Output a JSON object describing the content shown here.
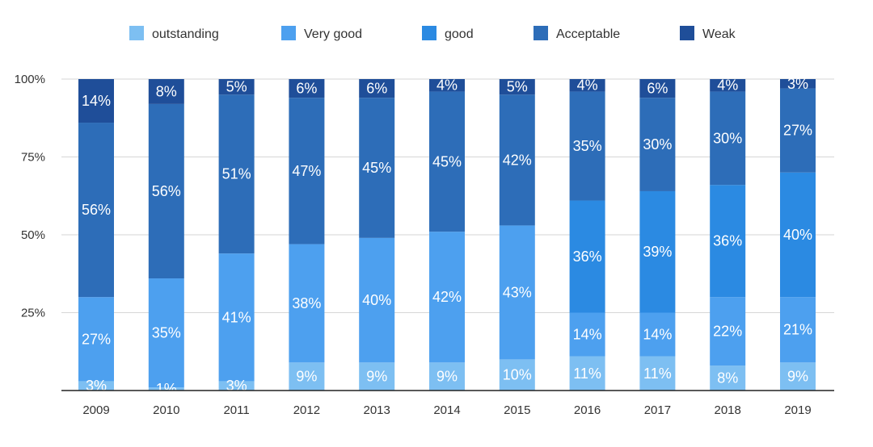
{
  "chart_data": {
    "type": "bar",
    "stacked": true,
    "title": "",
    "xlabel": "",
    "ylabel": "",
    "ylim": [
      0,
      100
    ],
    "yticks": [
      "100%",
      "75%",
      "50%",
      "25%"
    ],
    "ytick_values": [
      100,
      75,
      50,
      25
    ],
    "grid": true,
    "legend_position": "top",
    "categories": [
      "2009",
      "2010",
      "2011",
      "2012",
      "2013",
      "2014",
      "2015",
      "2016",
      "2017",
      "2018",
      "2019"
    ],
    "series": [
      {
        "name": "outstanding",
        "color": "#7dbff2",
        "values": [
          3,
          1,
          3,
          9,
          9,
          9,
          10,
          11,
          11,
          8,
          9
        ],
        "labels": [
          "3%",
          "1%",
          "3%",
          "9%",
          "9%",
          "9%",
          "10%",
          "11%",
          "11%",
          "8%",
          "9%"
        ]
      },
      {
        "name": "Very good",
        "color": "#4da0ef",
        "values": [
          27,
          35,
          41,
          38,
          40,
          42,
          43,
          14,
          14,
          22,
          21
        ],
        "labels": [
          "27%",
          "35%",
          "41%",
          "38%",
          "40%",
          "42%",
          "43%",
          "14%",
          "14%",
          "22%",
          "21%"
        ]
      },
      {
        "name": "good",
        "color": "#2b8ae2",
        "values": [
          0,
          0,
          0,
          0,
          0,
          0,
          0,
          36,
          39,
          36,
          40
        ],
        "labels": [
          "",
          "",
          "",
          "",
          "",
          "",
          "",
          "36%",
          "39%",
          "36%",
          "40%"
        ]
      },
      {
        "name": "Acceptable",
        "color": "#2d6db8",
        "values": [
          56,
          56,
          51,
          47,
          45,
          45,
          42,
          35,
          30,
          30,
          27
        ],
        "labels": [
          "56%",
          "56%",
          "51%",
          "47%",
          "45%",
          "45%",
          "42%",
          "35%",
          "30%",
          "30%",
          "27%"
        ]
      },
      {
        "name": "Weak",
        "color": "#1f4e99",
        "values": [
          14,
          8,
          5,
          6,
          6,
          4,
          5,
          4,
          6,
          4,
          3
        ],
        "labels": [
          "14%",
          "8%",
          "5%",
          "6%",
          "6%",
          "4%",
          "5%",
          "4%",
          "6%",
          "4%",
          "3%"
        ]
      }
    ]
  }
}
